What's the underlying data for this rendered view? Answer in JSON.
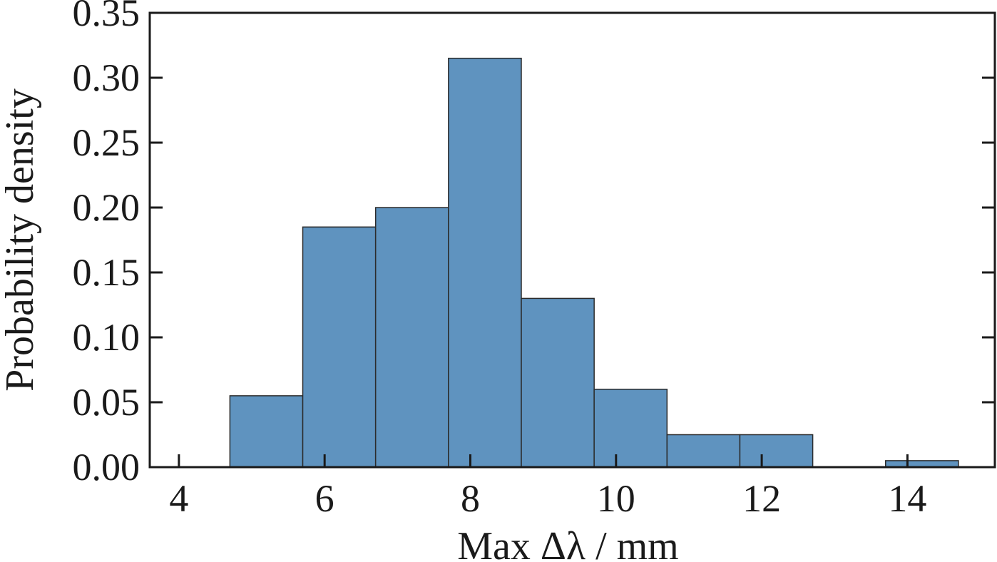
{
  "chart_data": {
    "type": "bar",
    "title": "",
    "xlabel": "Max Δλ / mm",
    "ylabel": "Probability density",
    "xlim": [
      3.6,
      15.2
    ],
    "ylim": [
      0,
      0.35
    ],
    "xticks": [
      4,
      6,
      8,
      10,
      12,
      14
    ],
    "xtick_labels": [
      "4",
      "6",
      "8",
      "10",
      "12",
      "14"
    ],
    "yticks": [
      0,
      0.05,
      0.1,
      0.15,
      0.2,
      0.25,
      0.3,
      0.35
    ],
    "ytick_labels": [
      "0.00",
      "0.05",
      "0.10",
      "0.15",
      "0.20",
      "0.25",
      "0.30",
      "0.35"
    ],
    "grid": false,
    "bins": [
      {
        "start": 4.7,
        "end": 5.7,
        "value": 0.055
      },
      {
        "start": 5.7,
        "end": 6.7,
        "value": 0.185
      },
      {
        "start": 6.7,
        "end": 7.7,
        "value": 0.2
      },
      {
        "start": 7.7,
        "end": 8.7,
        "value": 0.315
      },
      {
        "start": 8.7,
        "end": 9.7,
        "value": 0.13
      },
      {
        "start": 9.7,
        "end": 10.7,
        "value": 0.06
      },
      {
        "start": 10.7,
        "end": 11.7,
        "value": 0.025
      },
      {
        "start": 11.7,
        "end": 12.7,
        "value": 0.025
      },
      {
        "start": 12.7,
        "end": 13.7,
        "value": 0.0
      },
      {
        "start": 13.7,
        "end": 14.7,
        "value": 0.005
      }
    ],
    "colors": {
      "bar": "#5f93bf",
      "edge": "#2b2b2b",
      "axis": "#1a1a1a"
    }
  }
}
